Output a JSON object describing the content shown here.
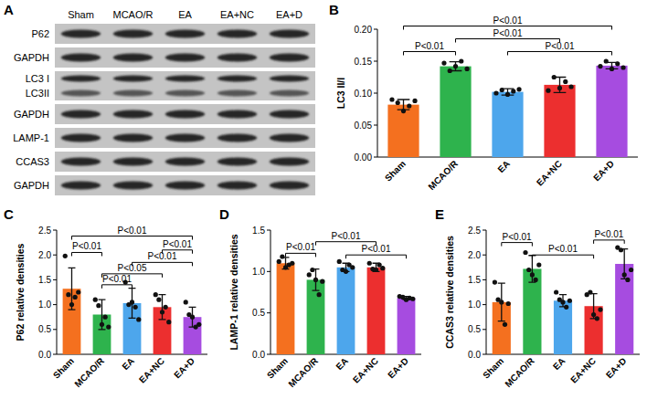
{
  "chart_data": [
    {
      "type": "blot",
      "title": "A",
      "categories": [
        "Sham",
        "MCAO/R",
        "EA",
        "EA+NC",
        "EA+D"
      ],
      "rows": [
        [
          "P62"
        ],
        [
          "GAPDH"
        ],
        [
          "LC3 I",
          "LC3II"
        ],
        [
          "GAPDH"
        ],
        [
          "LAMP-1"
        ],
        [
          "CCAS3"
        ],
        [
          "GAPDH"
        ]
      ]
    },
    {
      "type": "bar",
      "title": "B",
      "y_label": "LC3 II/I",
      "categories": [
        "Sham",
        "MCAO/R",
        "EA",
        "EA+NC",
        "EA+D"
      ],
      "values": [
        0.082,
        0.142,
        0.102,
        0.113,
        0.143
      ],
      "errors": [
        0.008,
        0.007,
        0.005,
        0.012,
        0.005
      ],
      "points": [
        [
          0.09,
          0.085,
          0.072,
          0.08,
          0.088
        ],
        [
          0.147,
          0.135,
          0.142,
          0.15,
          0.138
        ],
        [
          0.1,
          0.105,
          0.098,
          0.103,
          0.106
        ],
        [
          0.104,
          0.125,
          0.108,
          0.118,
          0.11
        ],
        [
          0.142,
          0.15,
          0.138,
          0.146,
          0.14
        ]
      ],
      "colors": [
        "#f4701f",
        "#2eb34d",
        "#4da6ec",
        "#ec2f2f",
        "#a64ce0"
      ],
      "ylim": [
        0,
        0.2
      ],
      "yticks": [
        {
          "value": 0,
          "label": "0.00"
        },
        0.05,
        {
          "value": 0.1,
          "label": "0.10"
        },
        0.15,
        {
          "value": 0.2,
          "label": "0.20"
        }
      ],
      "annotations": [
        {
          "from": 0,
          "to": 4,
          "y": 0.205,
          "text": "P<0.01"
        },
        {
          "from": 1,
          "to": 3,
          "y": 0.185,
          "text": "P<0.01"
        },
        {
          "from": 0,
          "to": 1,
          "y": 0.165,
          "text": "P<0.01"
        },
        {
          "from": 2,
          "to": 4,
          "y": 0.165,
          "text": "P<0.01"
        }
      ]
    },
    {
      "type": "bar",
      "title": "C",
      "y_label": "P62 relative densities",
      "categories": [
        "Sham",
        "MCAO/R",
        "EA",
        "EA+NC",
        "EA+D"
      ],
      "values": [
        1.32,
        0.8,
        1.03,
        0.95,
        0.75
      ],
      "errors": [
        0.42,
        0.3,
        0.3,
        0.25,
        0.2
      ],
      "points": [
        [
          1.98,
          1.2,
          1.0,
          1.15,
          1.25
        ],
        [
          1.1,
          0.98,
          0.6,
          0.75,
          0.55
        ],
        [
          1.45,
          1.0,
          1.05,
          0.95,
          0.7
        ],
        [
          1.2,
          1.1,
          0.85,
          0.95,
          0.65
        ],
        [
          1.05,
          0.8,
          0.75,
          0.55,
          0.6
        ]
      ],
      "colors": [
        "#f4701f",
        "#2eb34d",
        "#4da6ec",
        "#ec2f2f",
        "#a64ce0"
      ],
      "ylim": [
        0,
        2.5
      ],
      "yticks": [
        {
          "value": 0,
          "label": "0.0"
        },
        0.5,
        {
          "value": 1,
          "label": "1.0"
        },
        1.5,
        {
          "value": 2,
          "label": "2.0"
        },
        2.5
      ],
      "annotations": [
        {
          "from": 0,
          "to": 4,
          "y": 2.38,
          "text": "P<0.01"
        },
        {
          "from": 0,
          "to": 1,
          "y": 2.05,
          "text": "P<0.01"
        },
        {
          "from": 3,
          "to": 4,
          "y": 2.1,
          "text": "P<0.01"
        },
        {
          "from": 2,
          "to": 4,
          "y": 1.85,
          "text": "P<0.01"
        },
        {
          "from": 1,
          "to": 3,
          "y": 1.62,
          "text": "P<0.05"
        },
        {
          "from": 1,
          "to": 2,
          "y": 1.4,
          "text": "P<0.01"
        }
      ]
    },
    {
      "type": "bar",
      "title": "D",
      "y_label": "LAMP-1 relative densities",
      "categories": [
        "Sham",
        "MCAO/R",
        "EA",
        "EA+NC",
        "EA+D"
      ],
      "values": [
        1.1,
        0.9,
        1.05,
        1.05,
        0.68
      ],
      "errors": [
        0.07,
        0.13,
        0.05,
        0.05,
        0.02
      ],
      "points": [
        [
          1.12,
          1.18,
          1.05,
          1.08,
          1.1
        ],
        [
          0.96,
          1.02,
          0.9,
          0.72,
          0.88
        ],
        [
          1.12,
          1.02,
          1.0,
          1.08,
          1.05
        ],
        [
          1.1,
          1.03,
          1.02,
          1.08,
          1.04
        ],
        [
          0.7,
          0.69,
          0.66,
          0.68,
          0.67
        ]
      ],
      "colors": [
        "#f4701f",
        "#2eb34d",
        "#4da6ec",
        "#ec2f2f",
        "#a64ce0"
      ],
      "ylim": [
        0,
        1.5
      ],
      "yticks": [
        {
          "value": 0,
          "label": "0.0"
        },
        0.5,
        {
          "value": 1,
          "label": "1.0"
        },
        1.5
      ],
      "annotations": [
        {
          "from": 0,
          "to": 1,
          "y": 1.22,
          "text": "P<0.01"
        },
        {
          "from": 1,
          "to": 3,
          "y": 1.36,
          "text": "P<0.01"
        },
        {
          "from": 2,
          "to": 4,
          "y": 1.2,
          "text": "P<0.01"
        }
      ]
    },
    {
      "type": "bar",
      "title": "E",
      "y_label": "CCAS3 relative densities",
      "categories": [
        "Sham",
        "MCAO/R",
        "EA",
        "EA+NC",
        "EA+D"
      ],
      "values": [
        1.05,
        1.72,
        1.08,
        0.97,
        1.82
      ],
      "errors": [
        0.38,
        0.27,
        0.12,
        0.25,
        0.3
      ],
      "points": [
        [
          1.45,
          1.1,
          1.05,
          0.6,
          1.02
        ],
        [
          2.05,
          1.7,
          1.6,
          1.5,
          1.8
        ],
        [
          1.25,
          1.1,
          1.05,
          0.95,
          1.08
        ],
        [
          1.2,
          1.25,
          0.8,
          0.72,
          0.9
        ],
        [
          2.15,
          2.1,
          1.6,
          1.5,
          1.7
        ]
      ],
      "colors": [
        "#f4701f",
        "#2eb34d",
        "#4da6ec",
        "#ec2f2f",
        "#a64ce0"
      ],
      "ylim": [
        0,
        2.5
      ],
      "yticks": [
        {
          "value": 0,
          "label": "0.0"
        },
        0.5,
        {
          "value": 1,
          "label": "1.0"
        },
        1.5,
        {
          "value": 2,
          "label": "2.0"
        },
        2.5
      ],
      "annotations": [
        {
          "from": 0,
          "to": 1,
          "y": 2.25,
          "text": "P<0.01"
        },
        {
          "from": 3,
          "to": 4,
          "y": 2.3,
          "text": "P<0.01"
        },
        {
          "from": 1,
          "to": 3,
          "y": 2.0,
          "text": "P<0.01"
        }
      ]
    }
  ]
}
